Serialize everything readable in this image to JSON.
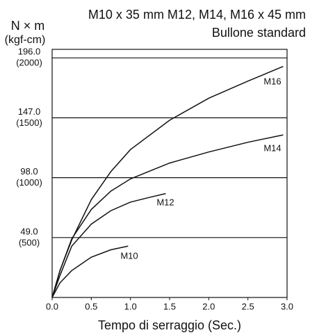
{
  "chart_data": {
    "type": "line",
    "title": "M10 x 35 mm M12, M14, M16 x 45 mm",
    "subtitle": "Bullone standard",
    "y_label": "N × m",
    "y_label_unit": "(kgf-cm)",
    "x_label": "Tempo di serraggio (Sec.)",
    "xlim": [
      0,
      3
    ],
    "ylim": [
      0,
      203
    ],
    "xticks": [
      {
        "value": 0,
        "label": "0.0"
      },
      0.5,
      {
        "value": 1,
        "label": "1.0"
      },
      1.5,
      {
        "value": 2,
        "label": "2.0"
      },
      2.5,
      {
        "value": 3,
        "label": "3.0"
      }
    ],
    "yticks": [
      {
        "value": 49,
        "label": "49.0",
        "sublabel": "(500)"
      },
      {
        "value": 98,
        "label": "98.0",
        "sublabel": "(1000)"
      },
      {
        "value": 147,
        "label": "147.0",
        "sublabel": "(1500)"
      },
      {
        "value": 196,
        "label": "196.0",
        "sublabel": "(2000)"
      }
    ],
    "grid": true,
    "series": [
      {
        "name": "M10",
        "color": "#111111",
        "x": [
          0,
          0.1,
          0.25,
          0.5,
          0.75,
          0.97
        ],
        "values": [
          0,
          12,
          22,
          33,
          39,
          42
        ]
      },
      {
        "name": "M12",
        "color": "#111111",
        "x": [
          0,
          0.1,
          0.25,
          0.5,
          0.75,
          1.0,
          1.25,
          1.45
        ],
        "values": [
          0,
          18,
          42,
          60,
          71,
          78,
          82,
          85
        ]
      },
      {
        "name": "M14",
        "color": "#111111",
        "x": [
          0,
          0.1,
          0.25,
          0.5,
          0.75,
          1.0,
          1.5,
          2.0,
          2.5,
          2.95
        ],
        "values": [
          0,
          22,
          48,
          72,
          87,
          97,
          110,
          119,
          127,
          133
        ]
      },
      {
        "name": "M16",
        "color": "#111111",
        "x": [
          0,
          0.1,
          0.25,
          0.5,
          0.75,
          1.0,
          1.5,
          2.0,
          2.5,
          2.95
        ],
        "values": [
          0,
          22,
          47,
          80,
          103,
          121,
          145,
          163,
          177,
          189
        ]
      }
    ]
  }
}
